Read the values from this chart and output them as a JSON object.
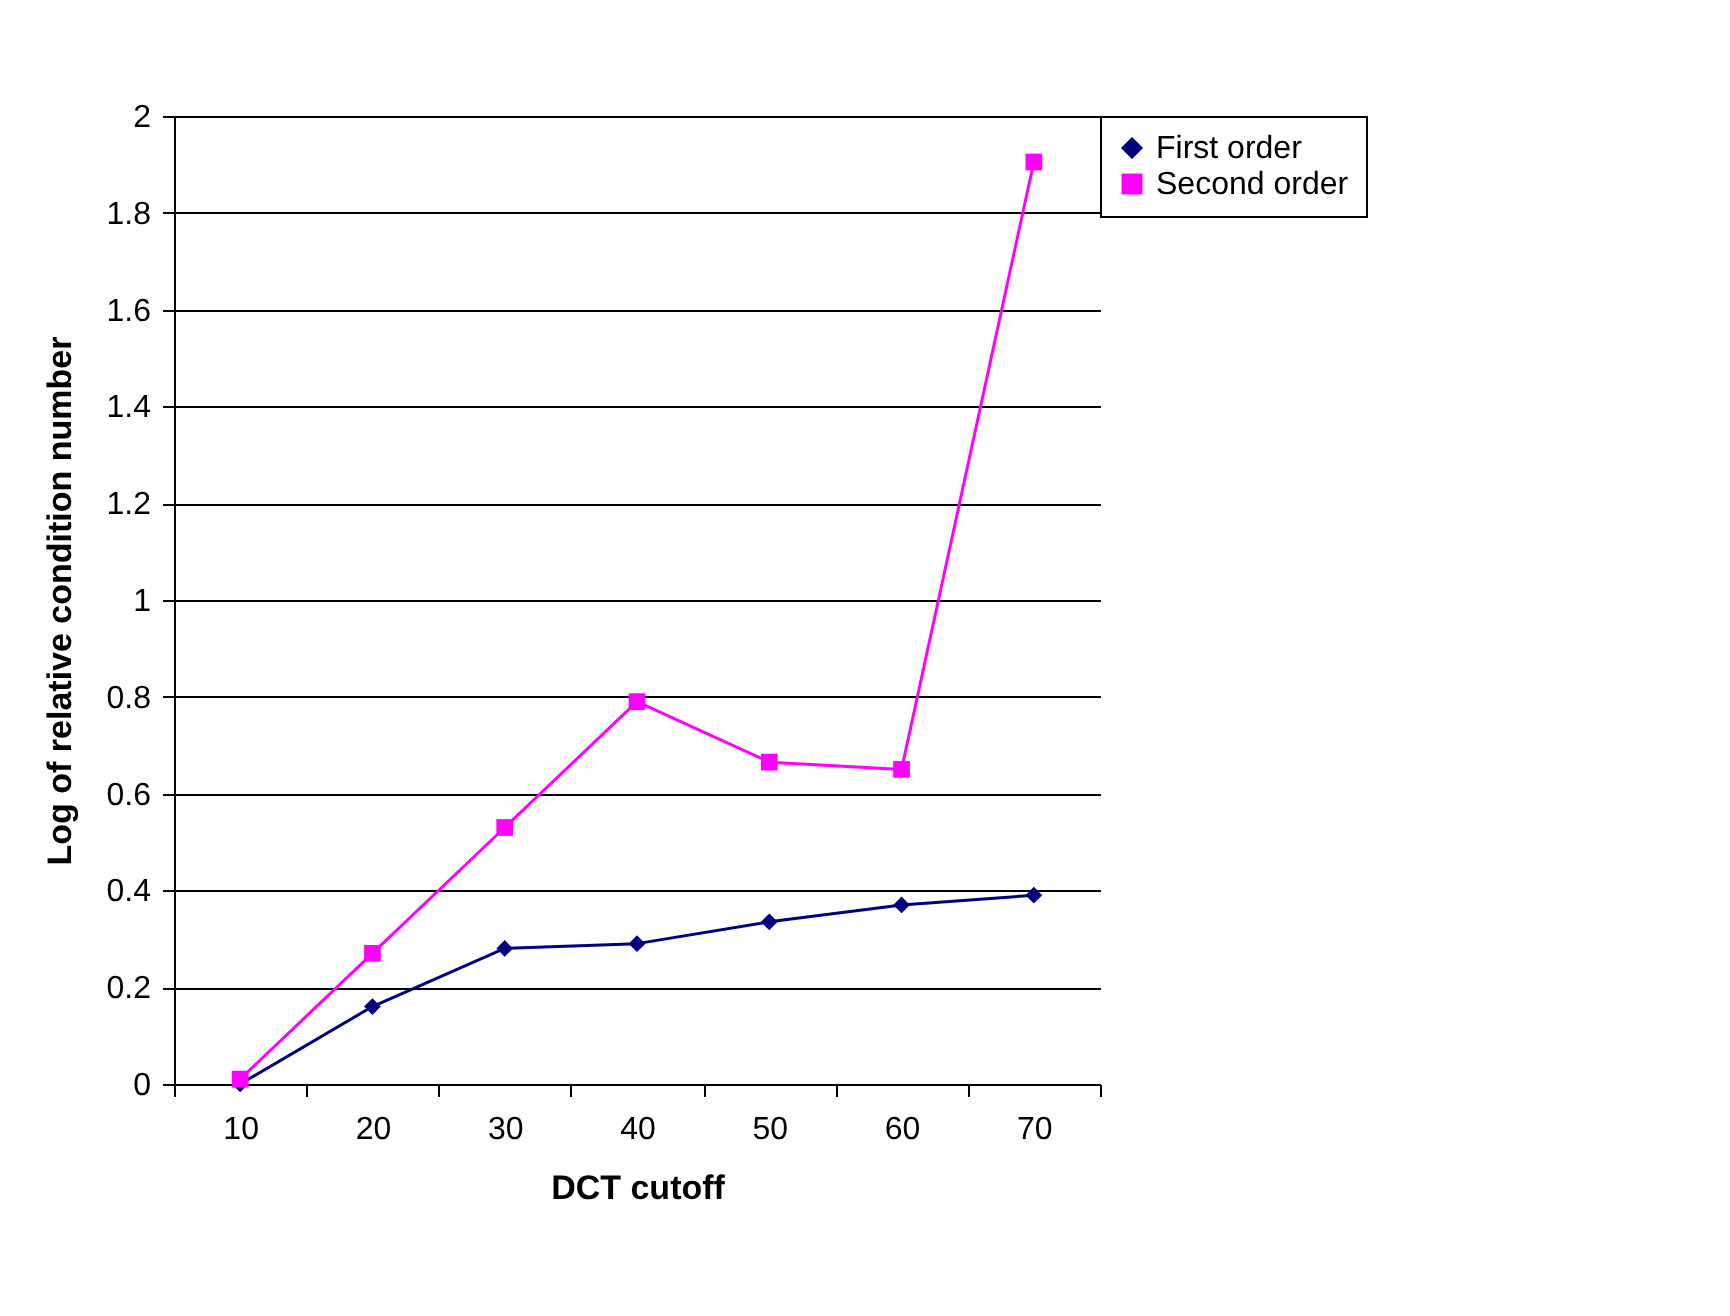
{
  "chart_data": {
    "type": "line",
    "xlabel": "DCT cutoff",
    "ylabel": "Log of relative condition number",
    "categories": [
      "10",
      "20",
      "30",
      "40",
      "50",
      "60",
      "70"
    ],
    "series": [
      {
        "name": "First order",
        "color": "#000080",
        "marker": "diamond",
        "values": [
          0,
          0.16,
          0.28,
          0.29,
          0.335,
          0.37,
          0.39
        ]
      },
      {
        "name": "Second order",
        "color": "#ff00ff",
        "marker": "square",
        "values": [
          0.01,
          0.27,
          0.53,
          0.79,
          0.665,
          0.65,
          1.905
        ]
      }
    ],
    "ylim": [
      0,
      2
    ],
    "yticks": [
      0,
      0.2,
      0.4,
      0.6,
      0.8,
      1,
      1.2,
      1.4,
      1.6,
      1.8,
      2
    ],
    "grid": "y",
    "legend": "right",
    "line_style": "solid"
  }
}
